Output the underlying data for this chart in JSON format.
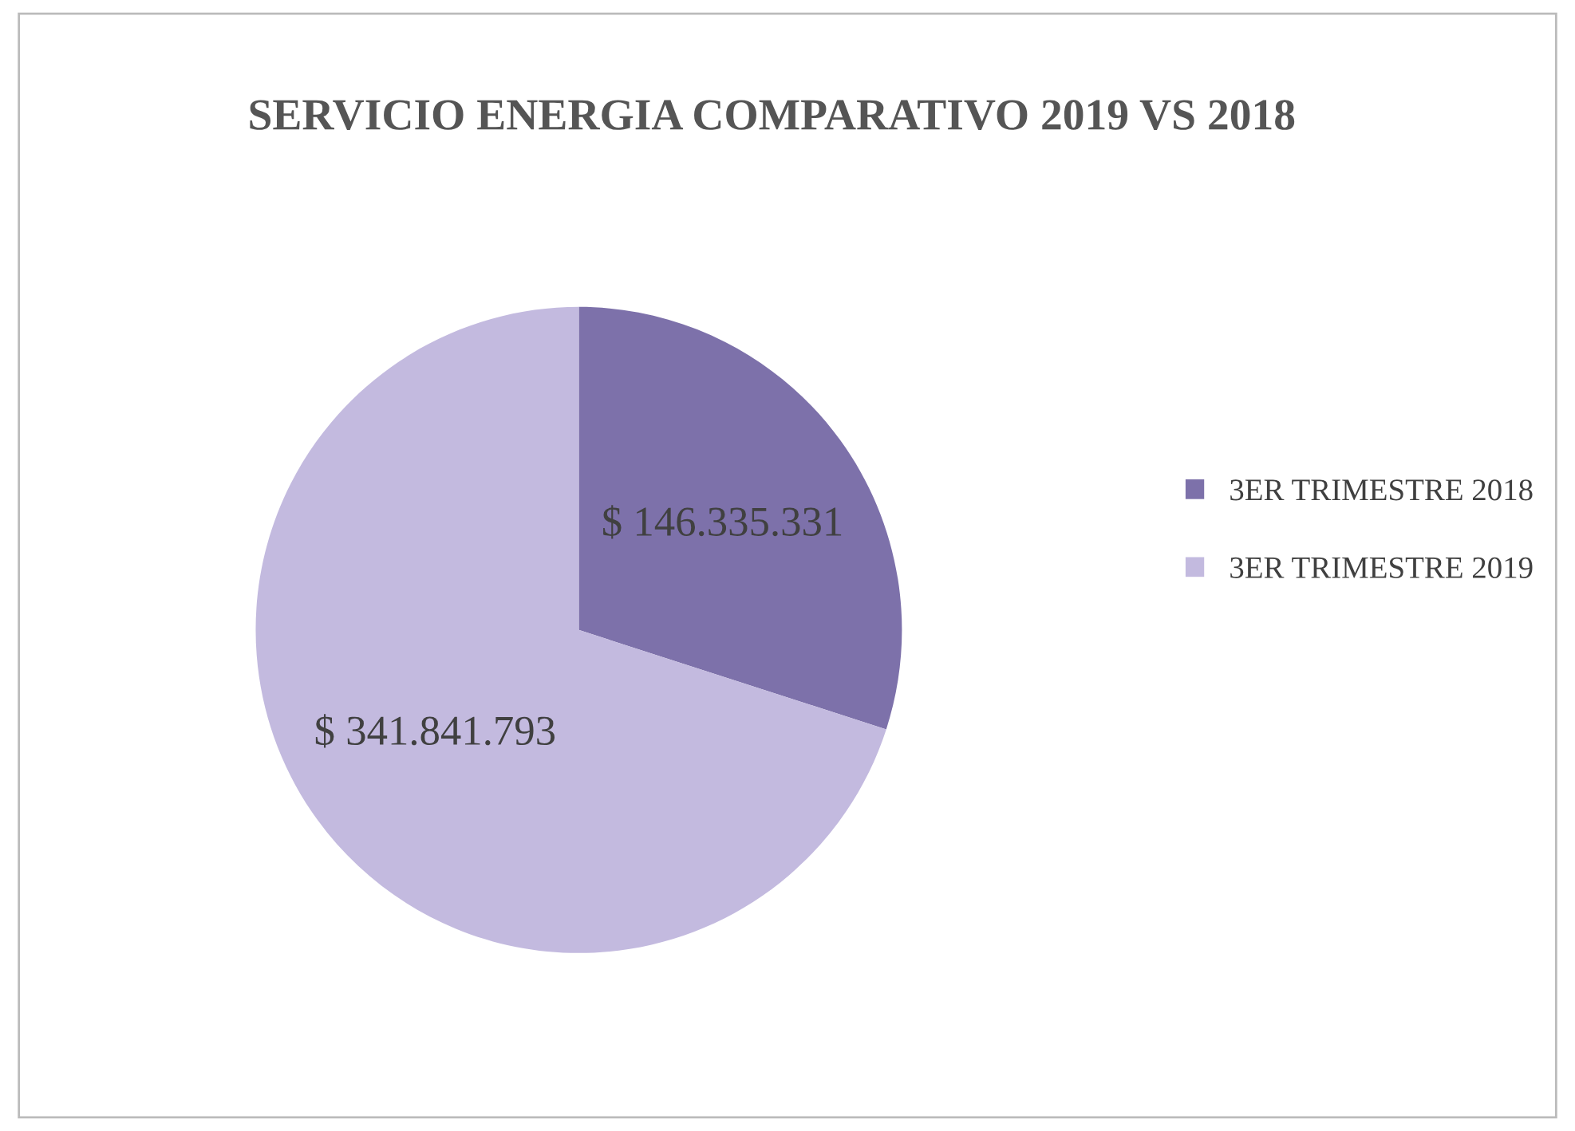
{
  "chart_data": {
    "type": "pie",
    "title": "SERVICIO ENERGIA COMPARATIVO 2019 VS 2018",
    "categories": [
      "3ER TRIMESTRE 2018",
      "3ER TRIMESTRE 2019"
    ],
    "values": [
      146335331,
      341841793
    ],
    "colors": [
      "#7d71aa",
      "#c3badf"
    ],
    "value_labels": [
      "$ 146.335.331",
      "$ 341.841.793"
    ],
    "legend": "right"
  }
}
